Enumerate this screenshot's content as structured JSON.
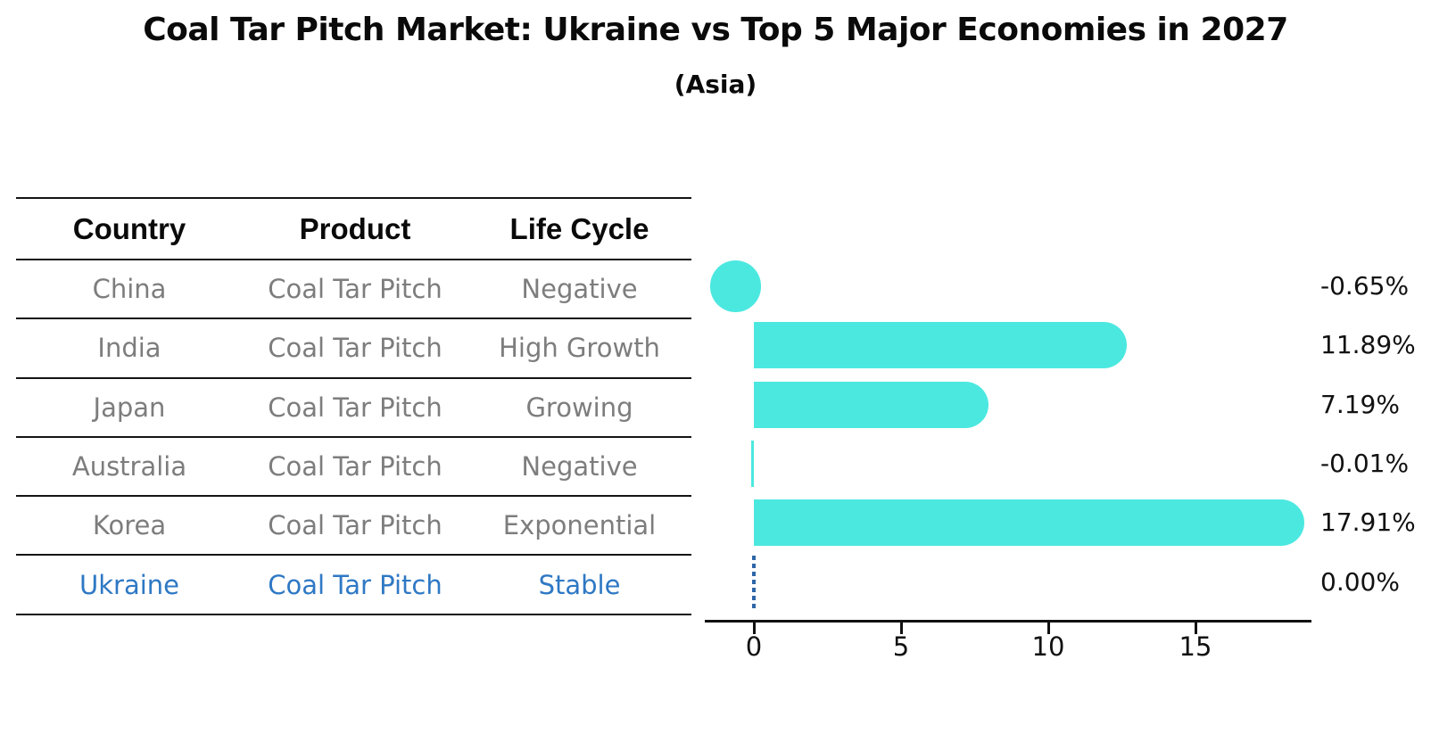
{
  "title": "Coal Tar Pitch Market: Ukraine vs Top 5 Major Economies in 2027",
  "subtitle": "(Asia)",
  "colors": {
    "bar": "#4BE8E0",
    "highlight_text": "#2E78C4",
    "highlight_dotted_line": "#2E66A8",
    "row_text": "#7d7d7d",
    "table_lines": "#141414",
    "axis": "#111111"
  },
  "table": {
    "headers": [
      "Country",
      "Product",
      "Life Cycle"
    ],
    "rows": [
      {
        "country": "China",
        "product": "Coal Tar Pitch",
        "life_cycle": "Negative",
        "highlight": false
      },
      {
        "country": "India",
        "product": "Coal Tar Pitch",
        "life_cycle": "High Growth",
        "highlight": false
      },
      {
        "country": "Japan",
        "product": "Coal Tar Pitch",
        "life_cycle": "Growing",
        "highlight": false
      },
      {
        "country": "Australia",
        "product": "Coal Tar Pitch",
        "life_cycle": "Negative",
        "highlight": false
      },
      {
        "country": "Korea",
        "product": "Coal Tar Pitch",
        "life_cycle": "Exponential",
        "highlight": false
      },
      {
        "country": "Ukraine",
        "product": "Coal Tar Pitch",
        "life_cycle": "Stable",
        "highlight": true
      }
    ]
  },
  "chart_data": {
    "type": "bar",
    "orientation": "horizontal",
    "title": "Coal Tar Pitch Market: Ukraine vs Top 5 Major Economies in 2027",
    "subtitle": "(Asia)",
    "categories": [
      "China",
      "India",
      "Japan",
      "Australia",
      "Korea",
      "Ukraine"
    ],
    "values": [
      -0.65,
      11.89,
      7.19,
      -0.01,
      17.91,
      0.0
    ],
    "value_labels": [
      "-0.65%",
      "11.89%",
      "7.19%",
      "-0.01%",
      "17.91%",
      "0.00%"
    ],
    "highlight_category": "Ukraine",
    "x_ticks": [
      0,
      5,
      10,
      15
    ],
    "x_tick_labels": [
      "0",
      "5",
      "10",
      "15"
    ],
    "xlim": [
      -1.7,
      18.9
    ],
    "grid": false,
    "legend": false,
    "bar_color": "#4BE8E0",
    "highlight_line_style": "dotted",
    "highlight_line_color": "#2E66A8",
    "value_label_position": "right-outside"
  }
}
